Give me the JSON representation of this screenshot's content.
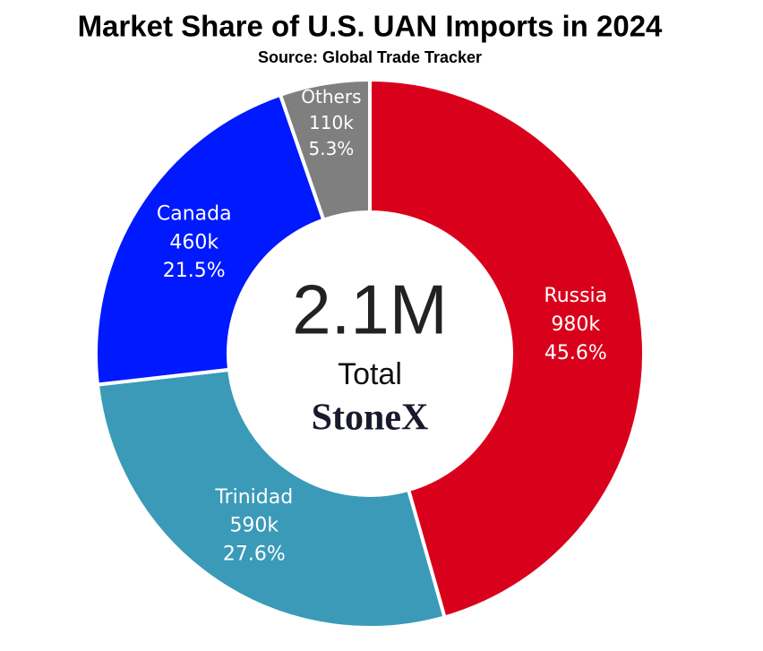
{
  "chart_data": {
    "type": "donut",
    "title": "Market Share of U.S. UAN Imports in 2024",
    "subtitle": "Source: Global Trade Tracker",
    "categories": [
      "Russia",
      "Trinidad",
      "Canada",
      "Others"
    ],
    "values": [
      45.6,
      27.6,
      21.5,
      5.3
    ],
    "value_labels": [
      "45.6%",
      "27.6%",
      "21.5%",
      "5.3%"
    ],
    "volumes": [
      980000,
      590000,
      460000,
      110000
    ],
    "volume_labels": [
      "980k",
      "590k",
      "460k",
      "110k"
    ],
    "colors": [
      "#d9001b",
      "#3a9ab8",
      "#0019ff",
      "#7f7f7f"
    ],
    "total": 2100000,
    "total_label": "2.1M",
    "total_caption": "Total",
    "logo": "StoneX"
  }
}
